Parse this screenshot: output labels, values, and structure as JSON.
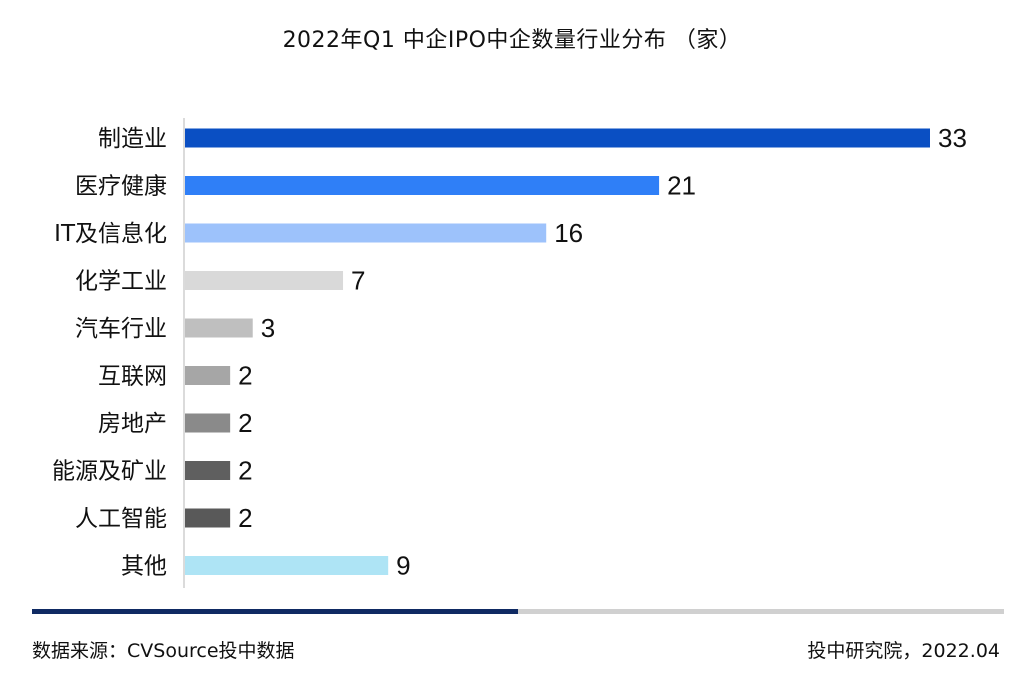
{
  "title": "2022年Q1 中企IPO中企数量行业分布 （家）",
  "source": "数据来源：CVSource投中数据",
  "credit": "投中研究院，2022.04",
  "footer_bar": {
    "fill_fraction": 0.5,
    "fill_color": "#0f2a63",
    "track_color": "#d0d0d0"
  },
  "chart_data": {
    "type": "bar",
    "orientation": "horizontal",
    "title": "2022年Q1 中企IPO中企数量行业分布 （家）",
    "xlabel": "",
    "ylabel": "",
    "categories": [
      "制造业",
      "医疗健康",
      "IT及信息化",
      "化学工业",
      "汽车行业",
      "互联网",
      "房地产",
      "能源及矿业",
      "人工智能",
      "其他"
    ],
    "values": [
      33,
      21,
      16,
      7,
      3,
      2,
      2,
      2,
      2,
      9
    ],
    "colors": [
      "#0a4fc3",
      "#2f7ff7",
      "#9dc2fb",
      "#d9d9d9",
      "#bfbfbf",
      "#a6a6a6",
      "#8a8a8a",
      "#5f5f5f",
      "#595959",
      "#aee4f5"
    ],
    "grid": false,
    "legend": "none",
    "data_labels": true
  }
}
